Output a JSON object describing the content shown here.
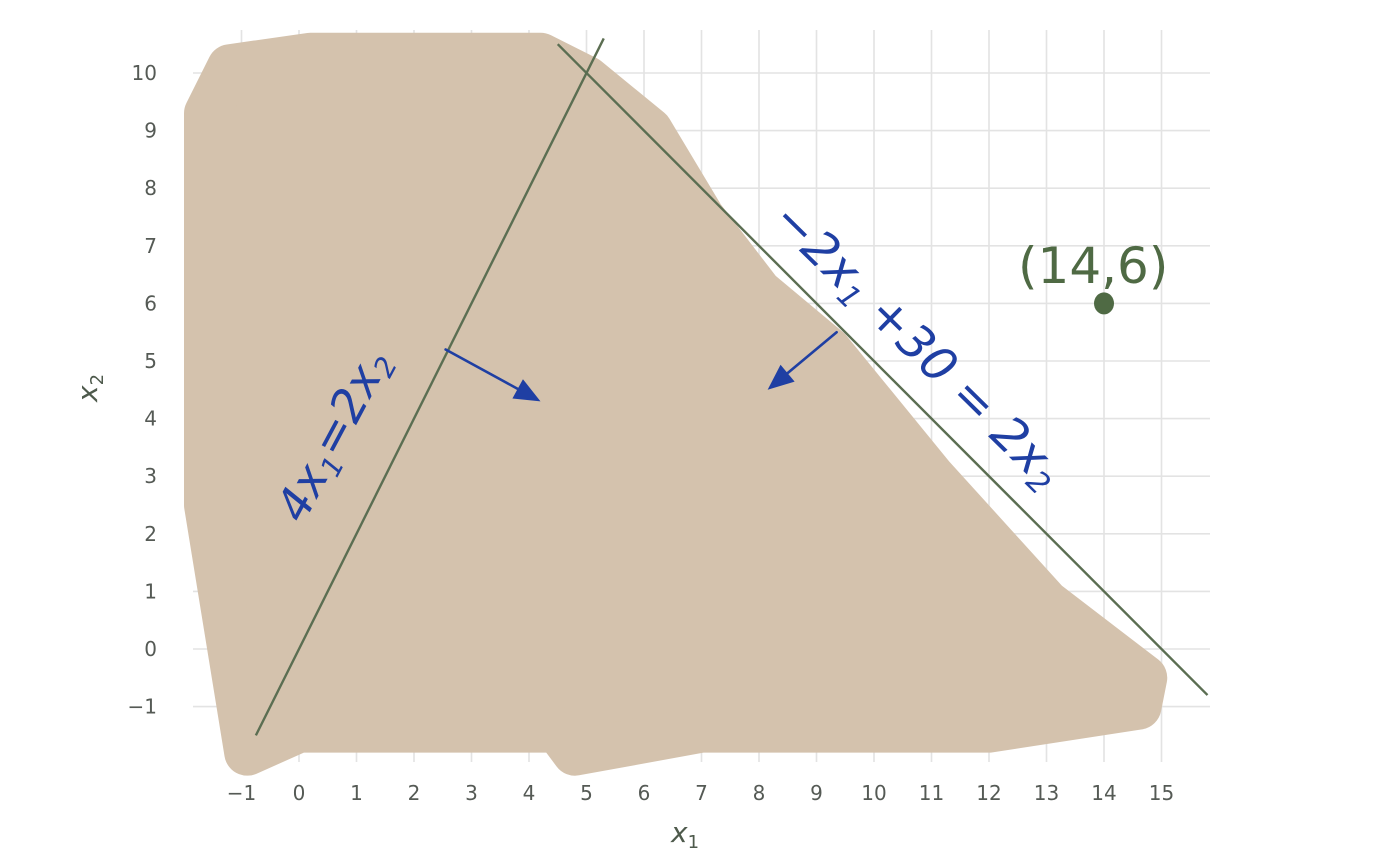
{
  "chart_data": {
    "type": "line",
    "title": "",
    "xlabel": "x",
    "xlabel_sub": "1",
    "ylabel": "x",
    "ylabel_sub": "2",
    "xlim": [
      -1.5,
      15.8
    ],
    "ylim": [
      -1.5,
      10.4
    ],
    "x_ticks": [
      -1,
      0,
      1,
      2,
      3,
      4,
      5,
      6,
      7,
      8,
      9,
      10,
      11,
      12,
      13,
      14,
      15
    ],
    "x_tick_labels": [
      "−1",
      "0",
      "1",
      "2",
      "3",
      "4",
      "5",
      "6",
      "7",
      "8",
      "9",
      "10",
      "11",
      "12",
      "13",
      "14",
      "15"
    ],
    "y_ticks": [
      -1,
      0,
      1,
      2,
      3,
      4,
      5,
      6,
      7,
      8,
      9,
      10
    ],
    "y_tick_labels": [
      "−1",
      "0",
      "1",
      "2",
      "3",
      "4",
      "5",
      "6",
      "7",
      "8",
      "9",
      "10"
    ],
    "grid": true,
    "lines": [
      {
        "label": "4x1 = 2x2",
        "x": [
          -0.75,
          5.3
        ],
        "y": [
          -1.5,
          10.6
        ],
        "color": "#5b6e52"
      },
      {
        "label": "-2x1 + 30 = 2x2",
        "x": [
          4.5,
          15.8
        ],
        "y": [
          10.5,
          -0.8
        ],
        "color": "#5b6e52"
      }
    ],
    "shaded_region": {
      "color": "#d4c2ad",
      "x": [
        -1.6,
        -1.2,
        0.2,
        4.2,
        5.0,
        6.1,
        7.0,
        8.0,
        9.2,
        11.0,
        13.0,
        14.7,
        14.6,
        12.0,
        7.0,
        4.8,
        4.5,
        0.0,
        -0.9,
        -1.6
      ],
      "y": [
        9.3,
        10.1,
        10.3,
        10.3,
        9.9,
        9.0,
        7.5,
        6.2,
        5.2,
        3.0,
        0.8,
        -0.5,
        -1.0,
        -1.4,
        -1.4,
        -1.8,
        -1.4,
        -1.4,
        -1.8,
        2.5
      ]
    },
    "arrows": [
      {
        "from": [
          2.55,
          5.2
        ],
        "to": [
          4.2,
          4.3
        ],
        "color": "#1f3fa3"
      },
      {
        "from": [
          9.35,
          5.5
        ],
        "to": [
          8.15,
          4.5
        ],
        "color": "#1f3fa3"
      }
    ],
    "point": {
      "x": 14,
      "y": 6,
      "label": "(14,6)",
      "color": "#4f6a44"
    },
    "annotations": [
      {
        "text": "4x1=2x2",
        "color": "#1f3fa3"
      },
      {
        "text": "-2x1 +30 = 2x2",
        "color": "#1f3fa3"
      }
    ]
  }
}
